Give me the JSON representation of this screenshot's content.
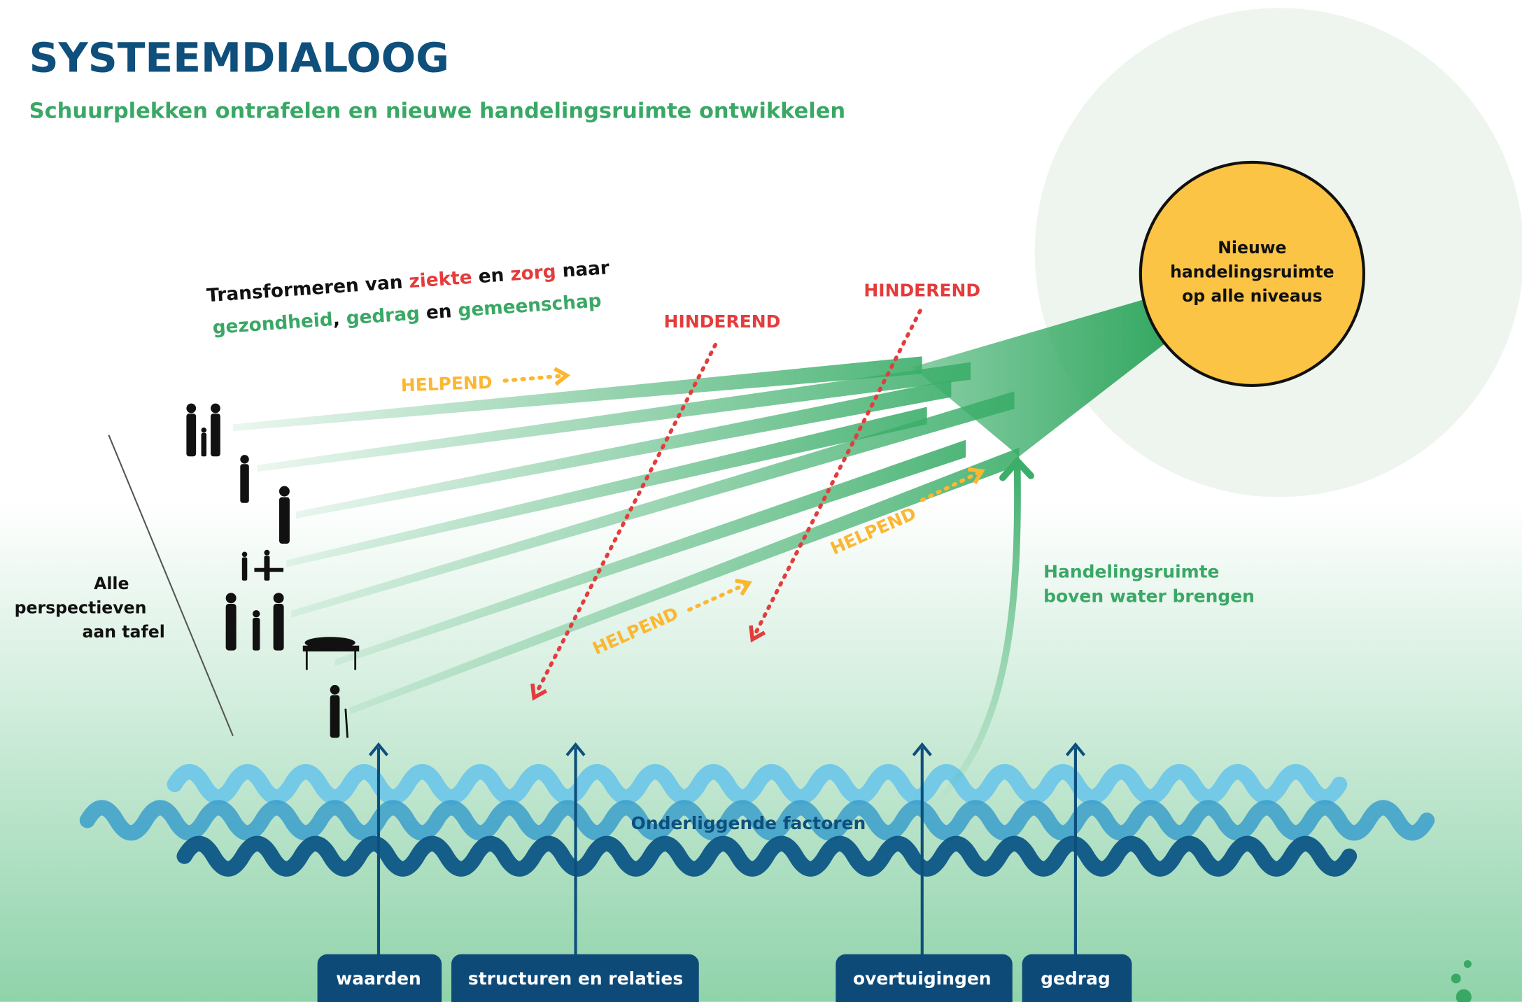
{
  "header": {
    "title": "SYSTEEMDIALOOG",
    "subtitle": "Schuurplekken ontrafelen en nieuwe handelingsruimte ontwikkelen"
  },
  "transform": {
    "line1": [
      "Transformeren van ",
      "ziekte",
      " en ",
      "zorg",
      " naar"
    ],
    "line2": [
      "gezondheid",
      ", ",
      "gedrag",
      " en ",
      "gemeenschap"
    ]
  },
  "goal": {
    "lines": [
      "Nieuwe",
      "handelingsruimte",
      "op alle niveaus"
    ]
  },
  "hindering": [
    "HINDEREND",
    "HINDEREND"
  ],
  "helping": [
    "HELPEND",
    "HELPEND",
    "HELPEND"
  ],
  "perspectives": {
    "lines": [
      "Alle",
      "perspectieven",
      "aan tafel"
    ]
  },
  "surfacing": {
    "lines": [
      "Handelingsruimte",
      "boven water brengen"
    ]
  },
  "underlying": "Onderliggende factoren",
  "factors": [
    "waarden",
    "structuren en relaties",
    "overtuigingen",
    "gedrag"
  ]
}
